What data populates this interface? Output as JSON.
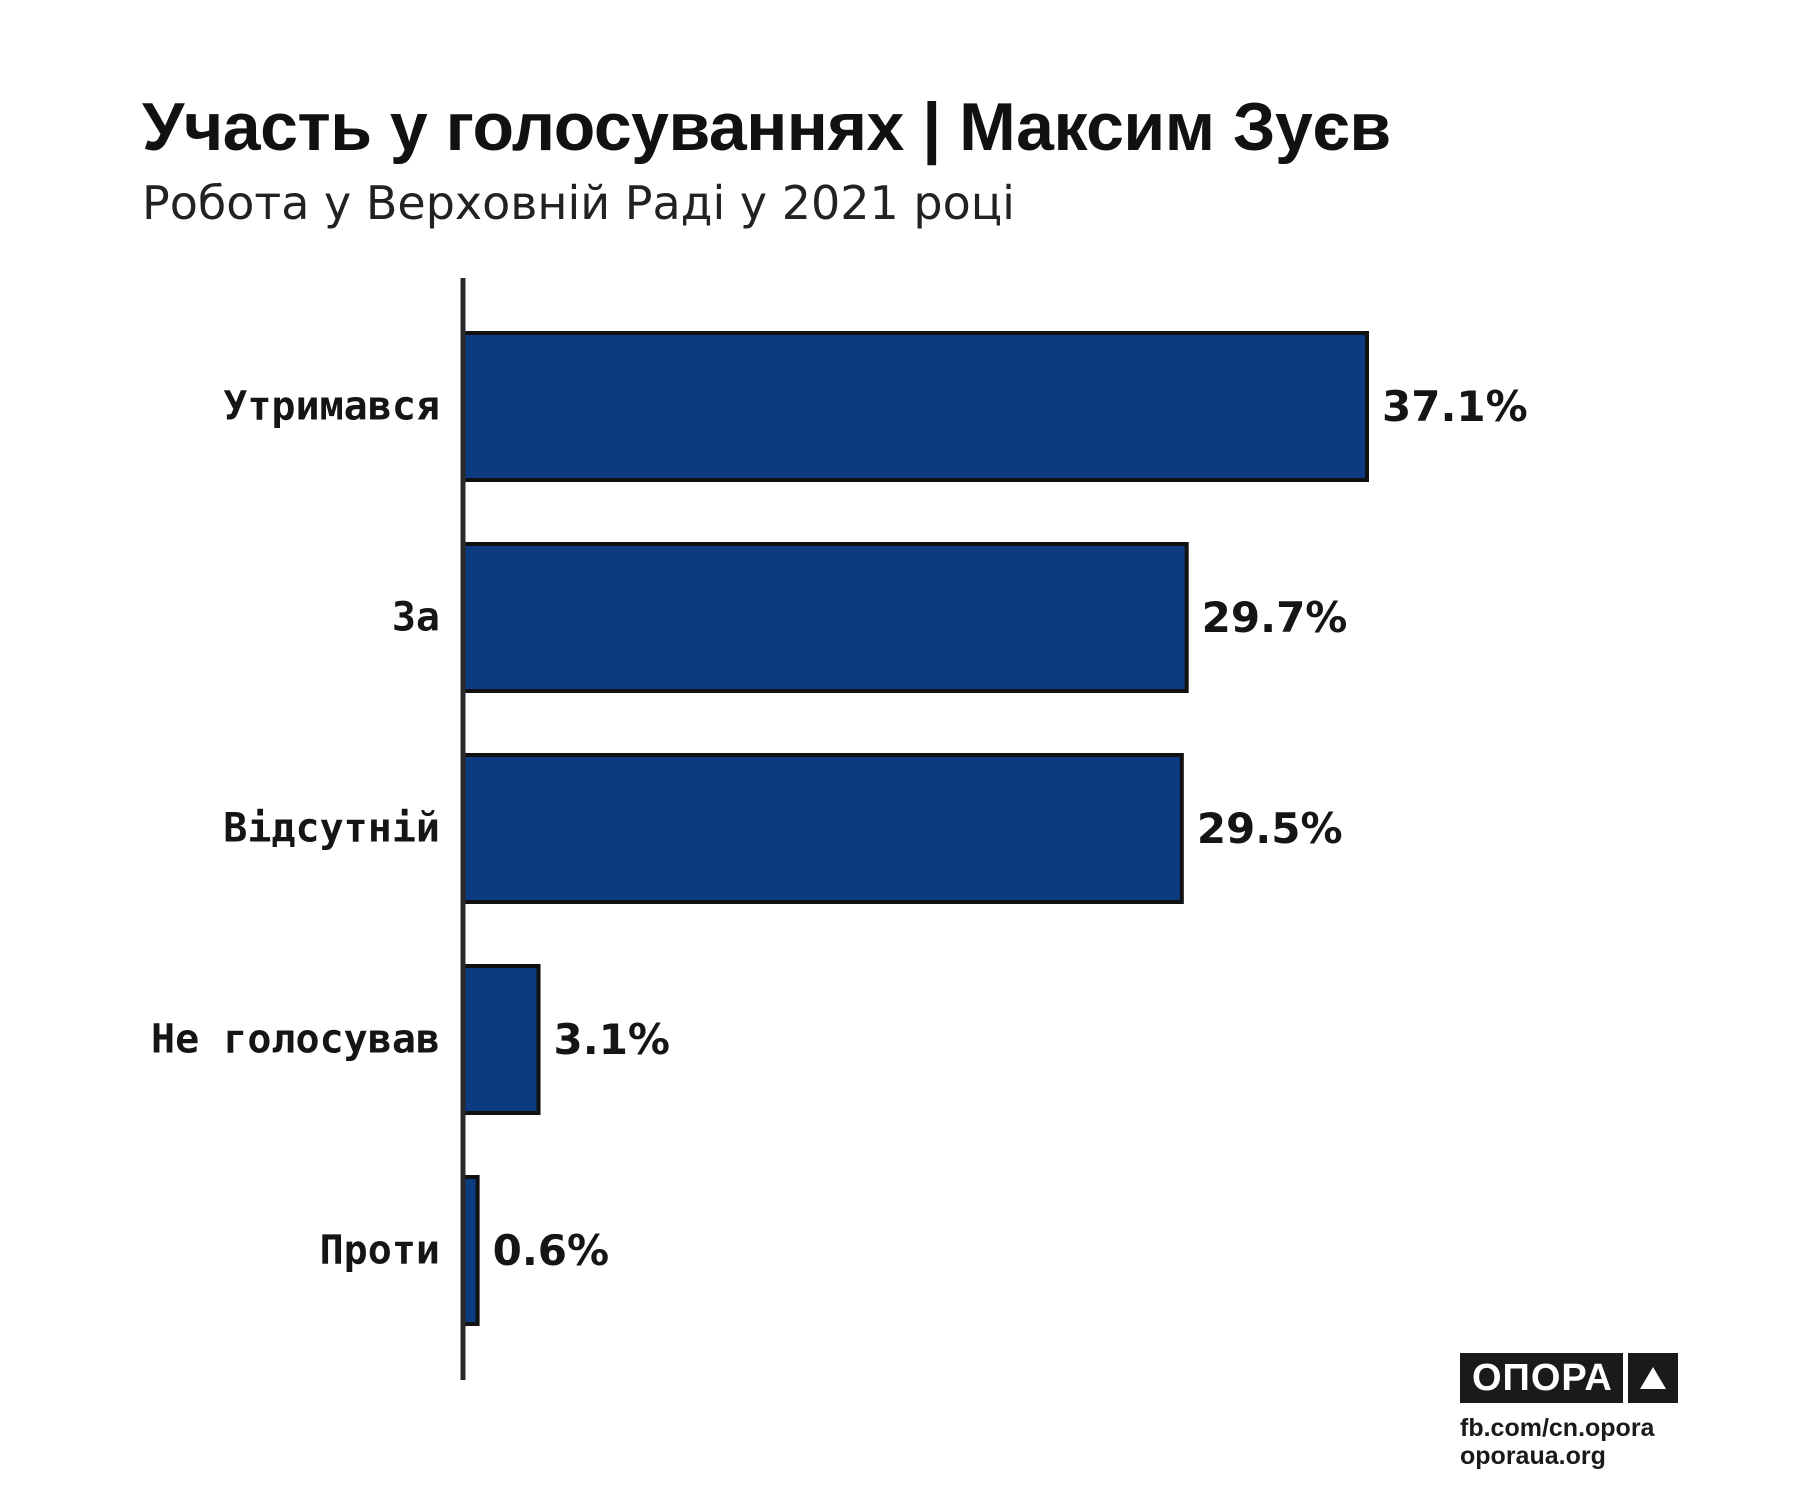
{
  "header": {
    "title": "Участь у голосуваннях | Максим Зуєв",
    "subtitle": "Робота у Верховній Раді у 2021 році"
  },
  "chart_data": {
    "type": "bar",
    "orientation": "horizontal",
    "categories": [
      "Утримався",
      "За",
      "Відсутній",
      "Не голосував",
      "Проти"
    ],
    "values": [
      37.1,
      29.7,
      29.5,
      3.1,
      0.6
    ],
    "value_labels": [
      "37.1%",
      "29.7%",
      "29.5%",
      "3.1%",
      "0.6%"
    ],
    "unit": "%",
    "xlim": [
      0,
      37.1
    ],
    "bar_color": "#0c3b82",
    "bar_outline_color": "#111111",
    "axis_color": "#2a2a2a",
    "grid": false,
    "legend": "none"
  },
  "branding": {
    "logo_text": "ОПОРА",
    "logo_icon": "triangle-up-icon",
    "source_lines": [
      "fb.com/cn.opora",
      "oporaua.org"
    ],
    "logo_bg_color": "#1a1a1a",
    "logo_fg_color": "#ffffff"
  }
}
